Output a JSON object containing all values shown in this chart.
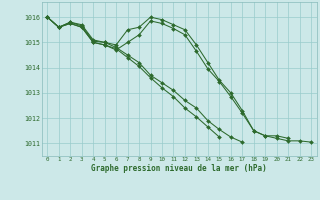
{
  "background_color": "#cce8e8",
  "grid_color": "#99cccc",
  "line_color": "#2d6a2d",
  "marker_color": "#2d6a2d",
  "xlabel": "Graphe pression niveau de la mer (hPa)",
  "xlim": [
    -0.5,
    23.5
  ],
  "ylim": [
    1010.5,
    1016.6
  ],
  "yticks": [
    1011,
    1012,
    1013,
    1014,
    1015,
    1016
  ],
  "xticks": [
    0,
    1,
    2,
    3,
    4,
    5,
    6,
    7,
    8,
    9,
    10,
    11,
    12,
    13,
    14,
    15,
    16,
    17,
    18,
    19,
    20,
    21,
    22,
    23
  ],
  "series": [
    [
      1016.0,
      1015.6,
      1015.8,
      1015.7,
      1015.1,
      1015.0,
      1014.9,
      1015.5,
      1015.6,
      1016.0,
      1015.9,
      1015.7,
      1015.5,
      1014.9,
      1014.2,
      1013.5,
      1013.0,
      1012.3,
      1011.5,
      1011.3,
      1011.3,
      1011.2,
      null,
      null
    ],
    [
      1016.0,
      1015.6,
      1015.8,
      1015.65,
      1015.05,
      1015.0,
      1014.8,
      1014.5,
      1014.2,
      1013.7,
      1013.4,
      1013.1,
      1012.7,
      1012.4,
      1011.9,
      1011.55,
      1011.25,
      1011.05,
      null,
      null,
      null,
      null,
      null,
      null
    ],
    [
      1016.0,
      1015.6,
      1015.75,
      1015.6,
      1015.0,
      1014.9,
      1014.75,
      1014.4,
      1014.05,
      1013.6,
      1013.2,
      1012.85,
      1012.4,
      1012.05,
      1011.65,
      1011.25,
      null,
      null,
      null,
      null,
      null,
      null,
      null,
      null
    ],
    [
      1016.0,
      1015.6,
      1015.75,
      1015.6,
      1015.0,
      1014.9,
      1014.7,
      1015.0,
      1015.3,
      1015.85,
      1015.75,
      1015.55,
      1015.3,
      1014.65,
      1013.95,
      1013.45,
      1012.85,
      1012.2,
      1011.5,
      1011.3,
      1011.2,
      1011.1,
      1011.1,
      1011.05
    ]
  ]
}
